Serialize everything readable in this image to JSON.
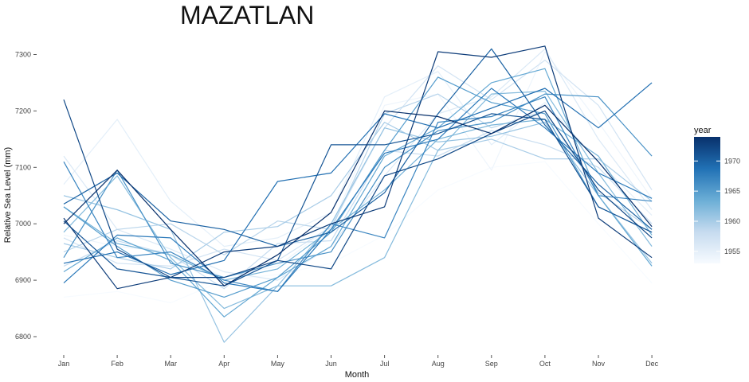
{
  "chart_data": {
    "type": "line",
    "title": "MAZATLAN",
    "xlabel": "Month",
    "ylabel": "Relative Sea Level (mm)",
    "categories": [
      "Jan",
      "Feb",
      "Mar",
      "Apr",
      "May",
      "Jun",
      "Jul",
      "Aug",
      "Sep",
      "Oct",
      "Nov",
      "Dec"
    ],
    "y_ticks": [
      6800,
      6900,
      7000,
      7100,
      7200,
      7300
    ],
    "ylim": [
      6770,
      7330
    ],
    "grid": false,
    "legend": {
      "title": "year",
      "position": "right",
      "type": "colorbar",
      "range": [
        1953,
        1974
      ],
      "ticks": [
        1955,
        1960,
        1965,
        1970
      ],
      "colors": [
        "#f7fbff",
        "#c6dbef",
        "#6baed6",
        "#2171b5",
        "#08306b"
      ]
    },
    "series": [
      {
        "year": 1953,
        "values": [
          6870,
          6880,
          6860,
          6900,
          6910,
          6930,
          6980,
          7060,
          7100,
          7110,
          7000,
          6895
        ]
      },
      {
        "year": 1954,
        "values": [
          6980,
          6960,
          6950,
          6905,
          6925,
          6995,
          7210,
          7230,
          7095,
          7305,
          7180,
          7045
        ]
      },
      {
        "year": 1955,
        "values": [
          7070,
          7185,
          7040,
          6960,
          6975,
          7020,
          7225,
          7270,
          7140,
          7215,
          7110,
          7015
        ]
      },
      {
        "year": 1956,
        "values": [
          7120,
          6990,
          6955,
          6915,
          6900,
          6960,
          7085,
          7195,
          7225,
          7310,
          7150,
          7025
        ]
      },
      {
        "year": 1957,
        "values": [
          6975,
          6930,
          6925,
          6955,
          6935,
          6995,
          7170,
          7280,
          7220,
          7290,
          7210,
          7060
        ]
      },
      {
        "year": 1958,
        "values": [
          6925,
          6970,
          6945,
          6885,
          6965,
          6970,
          7130,
          7120,
          7165,
          7140,
          7100,
          7000
        ]
      },
      {
        "year": 1959,
        "values": [
          6950,
          6990,
          7000,
          6945,
          7005,
          6990,
          7195,
          7230,
          7170,
          7200,
          7055,
          6990
        ]
      },
      {
        "year": 1960,
        "values": [
          6965,
          6940,
          6920,
          6985,
          6995,
          7050,
          7180,
          7130,
          7150,
          7115,
          7115,
          7040
        ]
      },
      {
        "year": 1961,
        "values": [
          7050,
          7025,
          6990,
          6790,
          6890,
          7000,
          7170,
          7145,
          7155,
          7180,
          7050,
          6930
        ]
      },
      {
        "year": 1962,
        "values": [
          6985,
          7085,
          6940,
          6850,
          6890,
          6890,
          6940,
          7130,
          7230,
          7235,
          7090,
          6960
        ]
      },
      {
        "year": 1963,
        "values": [
          7030,
          6965,
          6945,
          6900,
          6920,
          6990,
          7060,
          7150,
          7175,
          7185,
          7120,
          6980
        ]
      },
      {
        "year": 1964,
        "values": [
          6915,
          6975,
          6935,
          6835,
          6905,
          6960,
          7120,
          7170,
          7250,
          7275,
          7050,
          6925
        ]
      },
      {
        "year": 1965,
        "values": [
          7030,
          6960,
          6900,
          6870,
          6905,
          6985,
          7130,
          7260,
          7215,
          7195,
          7030,
          6985
        ]
      },
      {
        "year": 1966,
        "values": [
          6940,
          7095,
          6930,
          6905,
          6930,
          6950,
          7100,
          7165,
          7180,
          7230,
          7225,
          7120
        ]
      },
      {
        "year": 1967,
        "values": [
          7110,
          6940,
          6950,
          6900,
          6880,
          7000,
          6975,
          7180,
          7190,
          7225,
          7050,
          7040
        ]
      },
      {
        "year": 1968,
        "values": [
          6895,
          6980,
          6975,
          6895,
          6880,
          6990,
          7125,
          7150,
          7240,
          7170,
          7090,
          7045
        ]
      },
      {
        "year": 1969,
        "values": [
          6930,
          6950,
          6910,
          6935,
          7075,
          7090,
          7195,
          7170,
          7205,
          7240,
          7170,
          7250
        ]
      },
      {
        "year": 1970,
        "values": [
          7035,
          7090,
          7005,
          6990,
          6960,
          6985,
          7055,
          7195,
          7310,
          7175,
          7070,
          6990
        ]
      },
      {
        "year": 1971,
        "values": [
          7005,
          6920,
          6905,
          6890,
          6935,
          7140,
          7140,
          7160,
          7195,
          7185,
          7030,
          6985
        ]
      },
      {
        "year": 1972,
        "values": [
          7220,
          6955,
          6905,
          6905,
          6935,
          6920,
          7085,
          7115,
          7160,
          7200,
          7060,
          6975
        ]
      },
      {
        "year": 1973,
        "values": [
          7010,
          6885,
          6905,
          6950,
          6960,
          7000,
          7030,
          7305,
          7295,
          7315,
          7010,
          6940
        ]
      },
      {
        "year": 1974,
        "values": [
          7000,
          7095,
          6990,
          6890,
          6945,
          7020,
          7200,
          7190,
          7160,
          7210,
          7110,
          6995
        ]
      }
    ]
  }
}
